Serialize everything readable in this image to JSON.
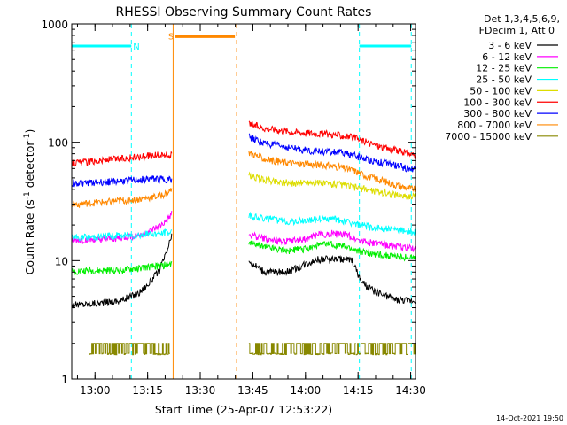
{
  "chart_data": {
    "type": "line",
    "title": "RHESSI Observing Summary Count Rates",
    "xlabel": "Start Time (25-Apr-07 12:53:22)",
    "ylabel_main": "Count Rate (s",
    "ylabel_sup1": "-1",
    "ylabel_mid": " detector",
    "ylabel_sup2": "-1",
    "ylabel_end": ")",
    "yscale": "log",
    "xlim": [
      0,
      98
    ],
    "ylim": [
      1,
      1000
    ],
    "x_ticks": [
      {
        "x": 6.63,
        "label": "13:00"
      },
      {
        "x": 21.63,
        "label": "13:15"
      },
      {
        "x": 36.63,
        "label": "13:30"
      },
      {
        "x": 51.63,
        "label": "13:45"
      },
      {
        "x": 66.63,
        "label": "14:00"
      },
      {
        "x": 81.63,
        "label": "14:15"
      },
      {
        "x": 96.63,
        "label": "14:30"
      }
    ],
    "y_ticks": [
      {
        "y": 1,
        "label": "1"
      },
      {
        "y": 10,
        "label": "10"
      },
      {
        "y": 100,
        "label": "100"
      },
      {
        "y": 1000,
        "label": "1000"
      }
    ],
    "legend": {
      "position": "top-right",
      "header": [
        "Det 1,3,4,5,6,9,",
        "FDecim 1, Att 0"
      ],
      "entries": [
        {
          "label": "3 - 6 keV",
          "color": "#000000"
        },
        {
          "label": "6 - 12 keV",
          "color": "#ff00ff"
        },
        {
          "label": "12 - 25 keV",
          "color": "#00ee00"
        },
        {
          "label": "25 - 50 keV",
          "color": "#00ffff"
        },
        {
          "label": "50 - 100 keV",
          "color": "#dddd00"
        },
        {
          "label": "100 - 300 keV",
          "color": "#ff0000"
        },
        {
          "label": "300 - 800 keV",
          "color": "#0000ff"
        },
        {
          "label": "800 - 7000 keV",
          "color": "#ff8800"
        },
        {
          "label": "7000 - 15000 keV",
          "color": "#888800"
        }
      ]
    },
    "series": [
      {
        "name": "3 - 6 keV",
        "color": "#000000",
        "segments": [
          {
            "x": [
              0,
              8,
              14,
              19,
              22,
              25,
              27,
              28,
              28.5
            ],
            "y": [
              4.2,
              4.4,
              4.6,
              5.3,
              6.4,
              8.2,
              11.5,
              14.5,
              16
            ]
          },
          {
            "x": [
              50.5,
              55,
              60,
              63,
              66,
              70,
              74,
              78,
              80,
              82,
              84,
              88,
              92,
              96,
              98
            ],
            "y": [
              9.8,
              8.0,
              8.0,
              8.3,
              9.2,
              10.2,
              10.3,
              10.3,
              10.0,
              7.0,
              6.0,
              5.2,
              4.7,
              4.6,
              4.6
            ]
          }
        ]
      },
      {
        "name": "6 - 12 keV",
        "color": "#ff00ff",
        "segments": [
          {
            "x": [
              0,
              8,
              14,
              19,
              22,
              25,
              27,
              28,
              28.5
            ],
            "y": [
              14.8,
              15.0,
              15.5,
              16.5,
              17.5,
              19.5,
              21.5,
              23.5,
              25
            ]
          },
          {
            "x": [
              50.5,
              56,
              62,
              66,
              70,
              74,
              78,
              82,
              86,
              90,
              94,
              98
            ],
            "y": [
              16.5,
              15.0,
              14.5,
              15.0,
              16.5,
              17.0,
              16.5,
              15.0,
              14.0,
              13.5,
              13.0,
              12.5
            ]
          }
        ]
      },
      {
        "name": "12 - 25 keV",
        "color": "#00ee00",
        "segments": [
          {
            "x": [
              0,
              8,
              14,
              19,
              22,
              25,
              27,
              28.5
            ],
            "y": [
              8.2,
              8.2,
              8.3,
              8.6,
              8.8,
              9.0,
              9.2,
              9.4
            ]
          },
          {
            "x": [
              50.5,
              56,
              62,
              66,
              70,
              74,
              78,
              82,
              86,
              90,
              94,
              98
            ],
            "y": [
              14.0,
              13.0,
              12.2,
              12.5,
              13.5,
              13.8,
              13.0,
              12.0,
              11.5,
              11.0,
              10.8,
              10.5
            ]
          }
        ]
      },
      {
        "name": "25 - 50 keV",
        "color": "#00ffff",
        "segments": [
          {
            "x": [
              0,
              8,
              14,
              19,
              22,
              25,
              27,
              28.5
            ],
            "y": [
              15.5,
              16.0,
              16.3,
              16.5,
              16.8,
              17.0,
              17.2,
              17.5
            ]
          },
          {
            "x": [
              50.5,
              56,
              62,
              66,
              70,
              74,
              78,
              82,
              86,
              90,
              94,
              98
            ],
            "y": [
              24.0,
              22.5,
              21.5,
              21.8,
              22.5,
              22.5,
              21.5,
              20.0,
              19.0,
              18.5,
              18.0,
              17.5
            ]
          }
        ]
      },
      {
        "name": "50 - 100 keV",
        "color": "#dddd00",
        "segments": [
          {
            "x": [
              50.5,
              55,
              60,
              64,
              68,
              72,
              76,
              80,
              84,
              88,
              92,
              96,
              98
            ],
            "y": [
              52,
              48,
              46,
              45,
              46,
              45,
              44,
              42,
              40,
              38,
              36,
              35,
              35
            ]
          }
        ]
      },
      {
        "name": "100 - 300 keV",
        "color": "#ff0000",
        "segments": [
          {
            "x": [
              0,
              8,
              14,
              19,
              22,
              25,
              28.5
            ],
            "y": [
              67,
              70,
              73,
              75,
              77,
              78,
              78
            ]
          },
          {
            "x": [
              50.5,
              55,
              60,
              64,
              68,
              72,
              76,
              80,
              84,
              88,
              92,
              96,
              98
            ],
            "y": [
              142,
              132,
              126,
              122,
              120,
              118,
              115,
              110,
              100,
              92,
              86,
              80,
              78
            ]
          }
        ]
      },
      {
        "name": "300 - 800 keV",
        "color": "#0000ff",
        "segments": [
          {
            "x": [
              0,
              8,
              14,
              19,
              22,
              25,
              28.5
            ],
            "y": [
              45,
              46,
              47,
              48,
              49,
              49,
              48
            ]
          },
          {
            "x": [
              50.5,
              55,
              60,
              64,
              68,
              72,
              76,
              80,
              84,
              88,
              92,
              96,
              98
            ],
            "y": [
              110,
              98,
              92,
              88,
              85,
              83,
              82,
              78,
              72,
              68,
              64,
              60,
              60
            ]
          }
        ]
      },
      {
        "name": "800 - 7000 keV",
        "color": "#ff8800",
        "segments": [
          {
            "x": [
              0,
              8,
              14,
              19,
              22,
              25,
              27,
              28.5
            ],
            "y": [
              30,
              31,
              32,
              33,
              34,
              35,
              37,
              40
            ]
          },
          {
            "x": [
              50.5,
              55,
              60,
              64,
              68,
              72,
              76,
              80,
              84,
              88,
              92,
              96,
              98
            ],
            "y": [
              82,
              72,
              68,
              66,
              65,
              64,
              62,
              58,
              52,
              48,
              44,
              41,
              40
            ]
          }
        ]
      },
      {
        "name": "7000 - 15000 keV",
        "color": "#888800",
        "segments": [
          {
            "x": [
              5,
              12,
              18,
              23,
              28
            ],
            "y": [
              2.0,
              2.0,
              2.0,
              2.0,
              2.0
            ],
            "step": true
          },
          {
            "x": [
              50.5,
              55,
              60,
              65,
              69,
              73,
              78,
              81
            ],
            "y": [
              2.0,
              1.6,
              2.0,
              1.6,
              2.8,
              2.0,
              1.6,
              2.0
            ],
            "step": true
          },
          {
            "x": [
              81,
              85,
              90,
              95,
              98
            ],
            "y": [
              2.0,
              1.6,
              2.0,
              1.6,
              2.0
            ],
            "step": true
          }
        ]
      }
    ],
    "annotations": {
      "night_color": "#00ffff",
      "saa_color": "#ff8800",
      "night_label": "N",
      "saa_label": "S",
      "night_lines": [
        0,
        17,
        82,
        96.8
      ],
      "saa_lines": [
        28.9,
        47
      ],
      "night_bars": [
        {
          "x0": 0,
          "x1": 17,
          "y": 650
        },
        {
          "x0": 82,
          "x1": 96.8,
          "y": 650
        }
      ],
      "saa_bars": [
        {
          "x0": 29.5,
          "x1": 46.5,
          "y": 780
        }
      ],
      "night_label_x": 17.5,
      "saa_label_x": 27.5
    },
    "footer_date": "14-Oct-2021 19:50"
  }
}
